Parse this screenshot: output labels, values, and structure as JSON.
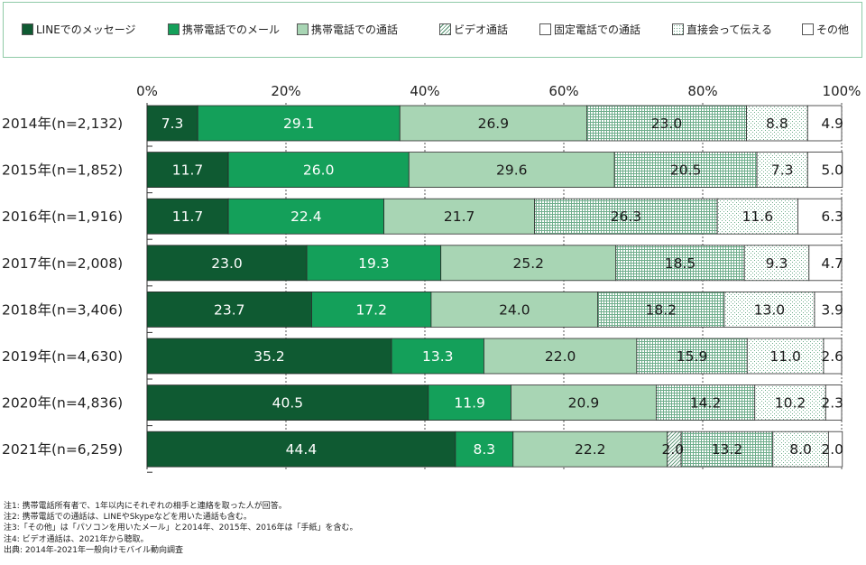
{
  "legend": [
    {
      "label": "LINEでのメッセージ",
      "swatch": "line-msg"
    },
    {
      "label": "携帯電話でのメール",
      "swatch": "mobile-mail"
    },
    {
      "label": "携帯電話での通話",
      "swatch": "mobile-call"
    },
    {
      "label": "ビデオ通話",
      "swatch": "video-call"
    },
    {
      "label": "固定電話での通話",
      "swatch": "landline-call"
    },
    {
      "label": "直接会って伝える",
      "swatch": "in-person"
    },
    {
      "label": "その他",
      "swatch": "other"
    }
  ],
  "colors": {
    "line_msg": "#0f5a32",
    "mobile_mail": "#14a05a",
    "mobile_call": "#a8d5b4",
    "hatch": "#6fae8c",
    "border": "#8fcaa7",
    "gridline": "#555555"
  },
  "chart_data": {
    "type": "bar",
    "orientation": "horizontal",
    "stacked": true,
    "xlim": [
      0,
      100
    ],
    "tick_labels": [
      "0%",
      "20%",
      "40%",
      "60%",
      "80%",
      "100%"
    ],
    "categories": [
      "2014年(n=2,132)",
      "2015年(n=1,852)",
      "2016年(n=1,916)",
      "2017年(n=2,008)",
      "2018年(n=3,406)",
      "2019年(n=4,630)",
      "2020年(n=4,836)",
      "2021年(n=6,259)"
    ],
    "series": [
      {
        "name": "LINEでのメッセージ",
        "pattern": "solid-dark",
        "values": [
          7.3,
          11.7,
          11.7,
          23.0,
          23.7,
          35.2,
          40.5,
          44.4
        ]
      },
      {
        "name": "携帯電話でのメール",
        "pattern": "solid-mid",
        "values": [
          29.1,
          26.0,
          22.4,
          19.3,
          17.2,
          13.3,
          11.9,
          8.3
        ]
      },
      {
        "name": "携帯電話での通話",
        "pattern": "solid-light",
        "values": [
          26.9,
          29.6,
          21.7,
          25.2,
          24.0,
          22.0,
          20.9,
          22.2
        ]
      },
      {
        "name": "ビデオ通話",
        "pattern": "diagonal",
        "values": [
          null,
          null,
          null,
          null,
          null,
          null,
          null,
          2.0
        ]
      },
      {
        "name": "固定電話での通話",
        "pattern": "grid",
        "values": [
          23.0,
          20.5,
          26.3,
          18.5,
          18.2,
          15.9,
          14.2,
          13.2
        ]
      },
      {
        "name": "直接会って伝える",
        "pattern": "dots",
        "values": [
          8.8,
          7.3,
          11.6,
          9.3,
          13.0,
          11.0,
          10.2,
          8.0
        ]
      },
      {
        "name": "その他",
        "pattern": "white",
        "values": [
          4.9,
          5.0,
          6.3,
          4.7,
          3.9,
          2.6,
          2.3,
          2.0
        ]
      }
    ],
    "labels": [
      [
        "7.3",
        "29.1",
        "26.9",
        null,
        "23.0",
        "8.8",
        "4.9"
      ],
      [
        "11.7",
        "26.0",
        "29.6",
        null,
        "20.5",
        "7.3",
        "5.0"
      ],
      [
        "11.7",
        "22.4",
        "21.7",
        null,
        "26.3",
        "11.6",
        "6.3"
      ],
      [
        "23.0",
        "19.3",
        "25.2",
        null,
        "18.5",
        "9.3",
        "4.7"
      ],
      [
        "23.7",
        "17.2",
        "24.0",
        null,
        "18.2",
        "13.0",
        "3.9"
      ],
      [
        "35.2",
        "13.3",
        "22.0",
        null,
        "15.9",
        "11.0",
        "2.6"
      ],
      [
        "40.5",
        "11.9",
        "20.9",
        null,
        "14.2",
        "10.2",
        "2.3"
      ],
      [
        "44.4",
        "8.3",
        "22.2",
        "2.0",
        "13.2",
        "8.0",
        "2.0"
      ]
    ]
  },
  "notes": [
    "注1: 携帯電話所有者で、1年以内にそれぞれの相手と連絡を取った人が回答。",
    "注2: 携帯電話での通話は、LINEやSkypeなどを用いた通話も含む。",
    "注3:「その他」は「パソコンを用いたメール」と2014年、2015年、2016年は「手紙」を含む。",
    "注4: ビデオ通話は、2021年から聴取。",
    "出典: 2014年-2021年一般向けモバイル動向調査"
  ]
}
